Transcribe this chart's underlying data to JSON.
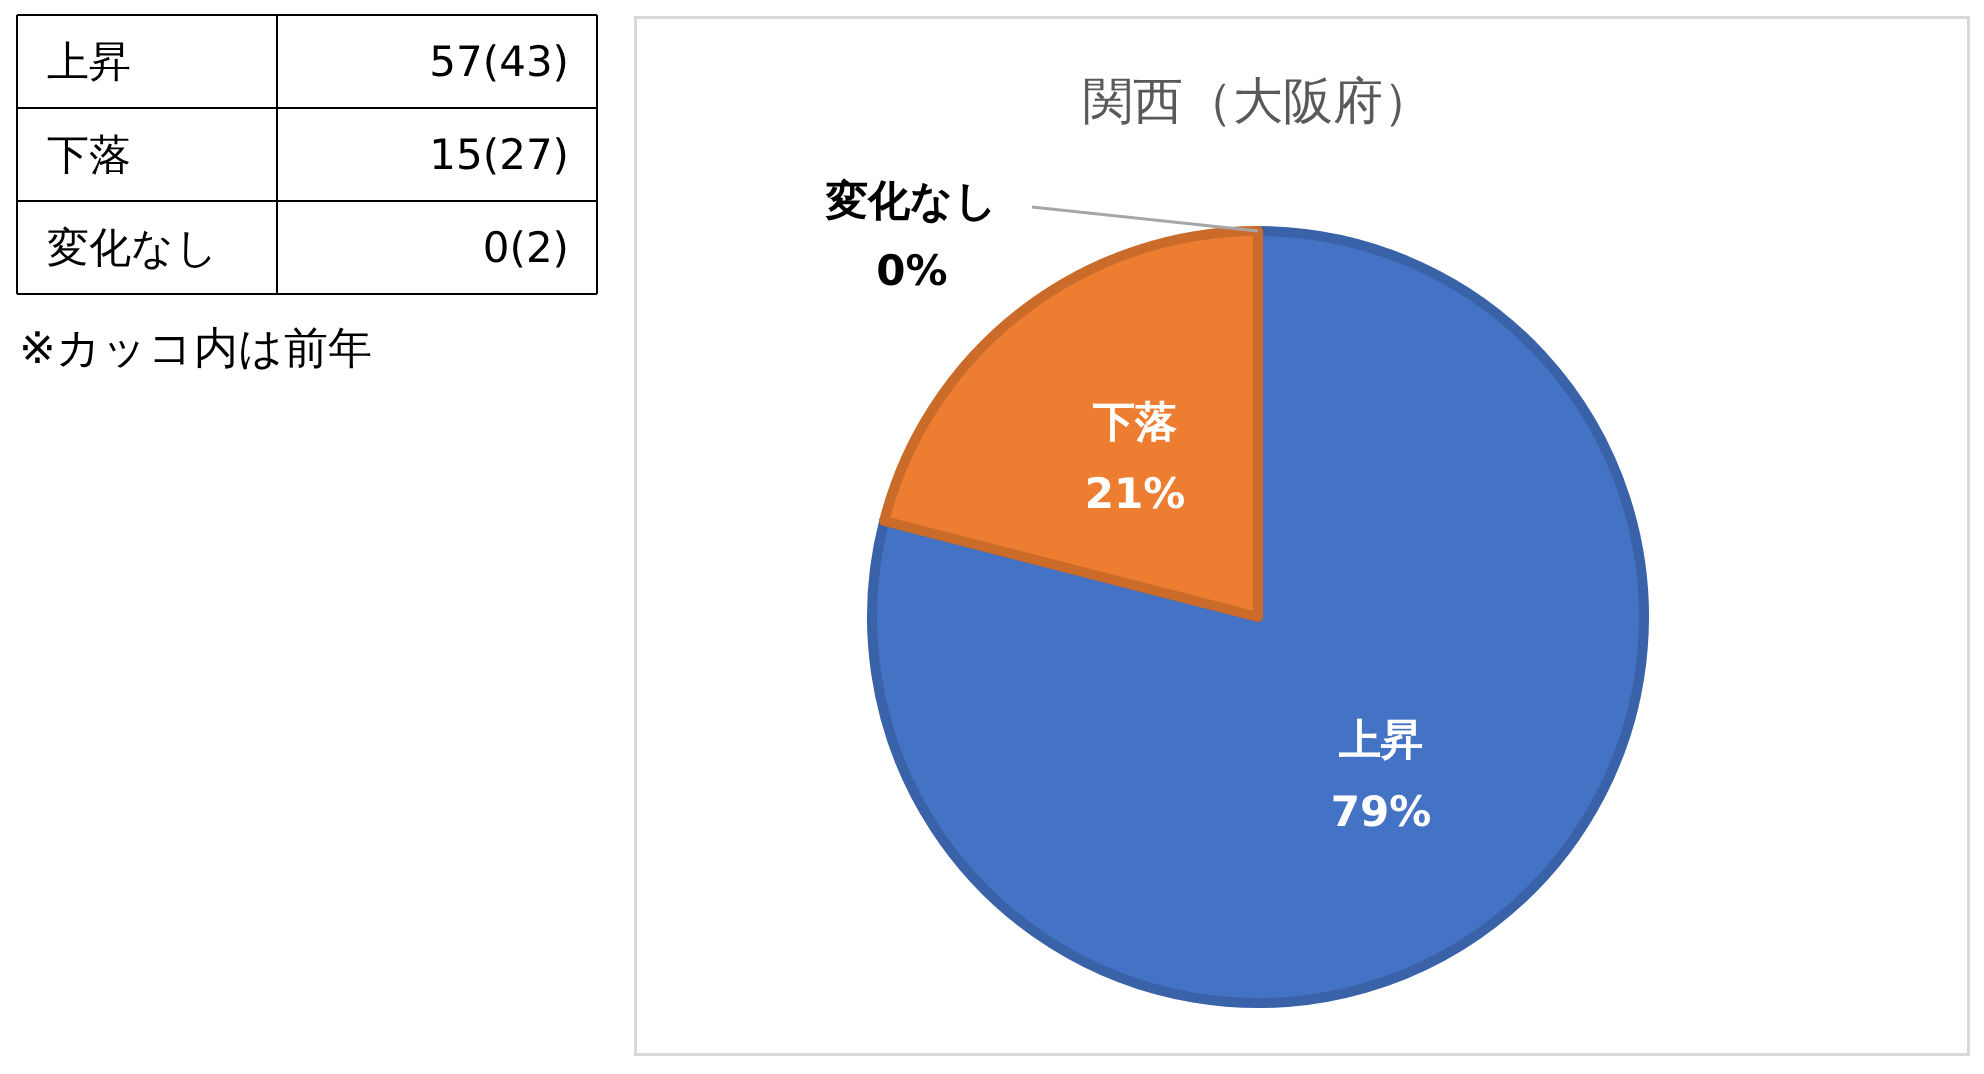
{
  "chart_data": [
    {
      "type": "other",
      "categories": [
        "上昇",
        "下落",
        "変化なし"
      ],
      "values": [
        57,
        15,
        0
      ],
      "value_labels": [
        "57(43)",
        "15(27)",
        "0(2)"
      ],
      "annotations": [
        "※カッコ内は前年"
      ]
    },
    {
      "type": "pie",
      "title": "関西（大阪府）",
      "categories": [
        "上昇",
        "下落",
        "変化なし"
      ],
      "values": [
        79,
        21,
        0
      ],
      "colors": [
        "#4472c4",
        "#ed7d31",
        null
      ],
      "value_labels": [
        "79%",
        "21%",
        "0%"
      ]
    }
  ]
}
